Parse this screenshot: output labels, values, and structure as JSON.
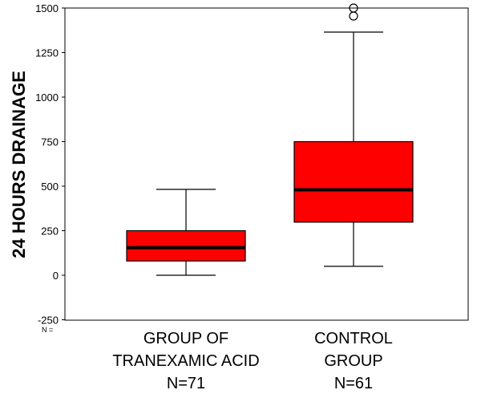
{
  "chart_data": {
    "type": "boxplot",
    "ylabel": "24 HOURS DRAINAGE",
    "ylim": [
      -250,
      1500
    ],
    "yticks": [
      -250,
      0,
      250,
      500,
      750,
      1000,
      1250,
      1500
    ],
    "n_prefix": "N =",
    "box_color": "#ff0000",
    "groups": [
      {
        "label_lines": [
          "GROUP OF",
          "TRANEXAMIC ACID",
          "N=71"
        ],
        "n": 71,
        "min": 0,
        "q1": 80,
        "median": 155,
        "q3": 250,
        "max": 482,
        "outliers": []
      },
      {
        "label_lines": [
          "CONTROL",
          "GROUP",
          "N=61"
        ],
        "n": 61,
        "min": 50,
        "q1": 298,
        "median": 480,
        "q3": 750,
        "max": 1365,
        "outliers": [
          1455,
          1500
        ]
      }
    ]
  }
}
